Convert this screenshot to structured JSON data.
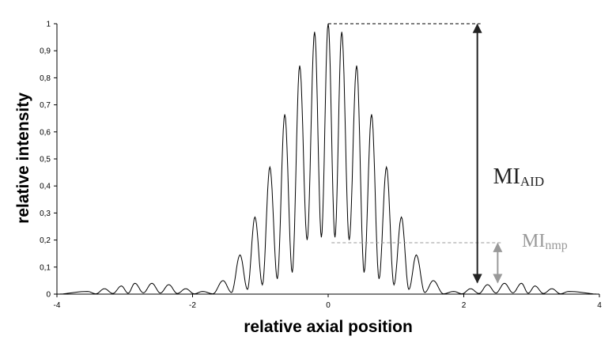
{
  "chart_data": {
    "type": "line",
    "title": "",
    "xlabel": "relative axial position",
    "ylabel": "relative intensity",
    "xlim": [
      -4,
      4
    ],
    "ylim": [
      0,
      1
    ],
    "x_ticks": [
      -4,
      -2,
      0,
      2,
      4
    ],
    "x_tick_labels": [
      "-4",
      "-2",
      "0",
      "2",
      "4"
    ],
    "y_ticks": [
      0,
      0.1,
      0.2,
      0.3,
      0.4,
      0.5,
      0.6,
      0.7,
      0.8,
      0.9,
      1
    ],
    "y_tick_labels": [
      "0",
      "0,1",
      "0,2",
      "0,3",
      "0,4",
      "0,5",
      "0,6",
      "0,7",
      "0,8",
      "0,9",
      "1"
    ],
    "grid": false,
    "legend": "none",
    "series": [
      {
        "peaks": [
          {
            "x": -3.55,
            "y": 0.01
          },
          {
            "x": -3.3,
            "y": 0.02
          },
          {
            "x": -3.05,
            "y": 0.03
          },
          {
            "x": -2.85,
            "y": 0.04
          },
          {
            "x": -2.6,
            "y": 0.04
          },
          {
            "x": -2.35,
            "y": 0.035
          },
          {
            "x": -2.1,
            "y": 0.02
          },
          {
            "x": -1.85,
            "y": 0.01
          },
          {
            "x": -1.55,
            "y": 0.05
          },
          {
            "x": -1.3,
            "y": 0.145
          },
          {
            "x": -1.08,
            "y": 0.285
          },
          {
            "x": -0.86,
            "y": 0.47
          },
          {
            "x": -0.64,
            "y": 0.665
          },
          {
            "x": -0.42,
            "y": 0.845
          },
          {
            "x": -0.2,
            "y": 0.97
          },
          {
            "x": 0.0,
            "y": 1.0
          },
          {
            "x": 0.2,
            "y": 0.97
          },
          {
            "x": 0.42,
            "y": 0.845
          },
          {
            "x": 0.64,
            "y": 0.665
          },
          {
            "x": 0.86,
            "y": 0.47
          },
          {
            "x": 1.08,
            "y": 0.285
          },
          {
            "x": 1.3,
            "y": 0.145
          },
          {
            "x": 1.55,
            "y": 0.05
          },
          {
            "x": 1.85,
            "y": 0.01
          },
          {
            "x": 2.1,
            "y": 0.02
          },
          {
            "x": 2.35,
            "y": 0.035
          },
          {
            "x": 2.6,
            "y": 0.04
          },
          {
            "x": 2.85,
            "y": 0.04
          },
          {
            "x": 3.05,
            "y": 0.03
          },
          {
            "x": 3.3,
            "y": 0.02
          },
          {
            "x": 3.55,
            "y": 0.01
          }
        ],
        "troughs": [
          {
            "x": -0.1,
            "y": 0.21
          },
          {
            "x": 0.1,
            "y": 0.21
          },
          {
            "x": -0.31,
            "y": 0.2
          },
          {
            "x": 0.31,
            "y": 0.2
          }
        ],
        "color": "#000000"
      }
    ],
    "annotations": [
      {
        "label": "MI",
        "subscript": "AID",
        "from": 1.0,
        "to": 0.04,
        "x": 2.2,
        "color": "#222222"
      },
      {
        "label": "MI",
        "subscript": "nmp",
        "from": 0.19,
        "to": 0.04,
        "x": 2.5,
        "color": "#999999"
      }
    ]
  }
}
